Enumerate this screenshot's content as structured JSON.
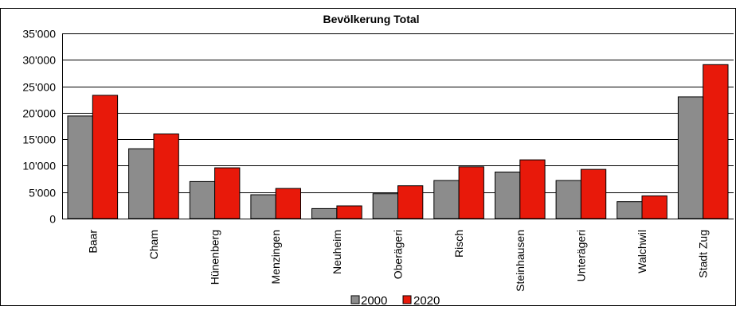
{
  "chart_data": {
    "type": "bar",
    "title": "Bevölkerung Total",
    "xlabel": "",
    "ylabel": "",
    "ylim": [
      0,
      35000
    ],
    "y_ticks": [
      0,
      5000,
      10000,
      15000,
      20000,
      25000,
      30000,
      35000
    ],
    "y_tick_labels": [
      "0",
      "5'000",
      "10'000",
      "15'000",
      "20'000",
      "25'000",
      "30'000",
      "35'000"
    ],
    "grid": true,
    "legend_position": "bottom",
    "categories": [
      "Baar",
      "Cham",
      "Hünenberg",
      "Menzingen",
      "Neuheim",
      "Oberägeri",
      "Risch",
      "Steinhausen",
      "Unterägeri",
      "Walchwil",
      "Stadt Zug"
    ],
    "series": [
      {
        "name": "2000",
        "color": "#8c8c8c",
        "values": [
          19400,
          13200,
          7000,
          4500,
          1900,
          4700,
          7200,
          8800,
          7200,
          3200,
          23000
        ]
      },
      {
        "name": "2020",
        "color": "#e8190a",
        "values": [
          23300,
          16000,
          9600,
          5700,
          2400,
          6200,
          9800,
          11100,
          9300,
          4300,
          29100
        ]
      }
    ]
  }
}
